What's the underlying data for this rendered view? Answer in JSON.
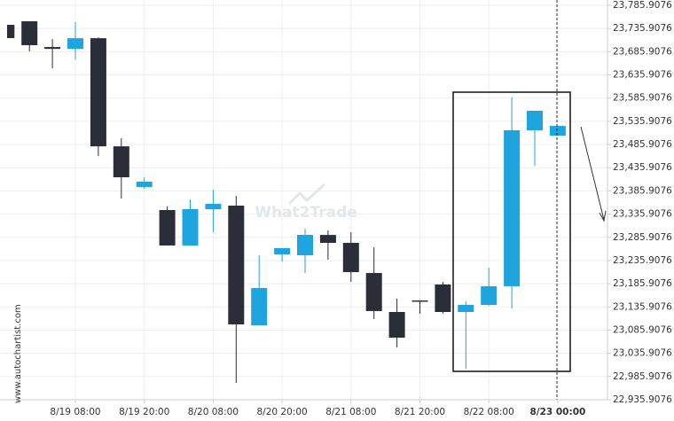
{
  "chart_data": {
    "type": "candlestick",
    "watermark": "What2Trade",
    "source": "www.autochartist.com",
    "categories": [
      null,
      null,
      null,
      "8/19 08:00",
      null,
      null,
      "8/19 20:00",
      null,
      null,
      "8/20 08:00",
      null,
      null,
      "8/20 20:00",
      null,
      null,
      "8/21 08:00",
      null,
      null,
      "8/21 20:00",
      null,
      null,
      "8/22 08:00",
      null,
      null,
      "8/23 00:00"
    ],
    "open": [
      23743.9,
      23751.5,
      23696.0,
      23692.0,
      23715.0,
      23482.0,
      23394.4,
      23344.7,
      23268.0,
      23346.6,
      23354.2,
      23096.4,
      23249.2,
      23247.3,
      23291.0,
      23274.0,
      23209.0,
      23125.0,
      23149.9,
      23184.3,
      23125.0,
      23140.3,
      23180.5,
      23516.6,
      23505.0
    ],
    "high": [
      23744.0,
      23751.5,
      23713.0,
      23749.6,
      23717.0,
      23499.4,
      23415.3,
      23352.3,
      23367.6,
      23388.6,
      23375.3,
      23247.3,
      23262.6,
      23304.6,
      23300.8,
      23296.9,
      23264.5,
      23153.7,
      23150.0,
      23190.0,
      23148.0,
      23220.5,
      23587.3,
      23558.6,
      23526.0
    ],
    "low": [
      23715.0,
      23686.6,
      23650.0,
      23669.0,
      23461.0,
      23369.5,
      23390.5,
      23268.0,
      23268.0,
      23296.9,
      22972.0,
      23096.0,
      23233.9,
      23209.0,
      23237.7,
      23190.0,
      23109.8,
      23048.7,
      23121.0,
      23121.0,
      23002.8,
      23138.0,
      23132.7,
      23440.2,
      23505.0
    ],
    "close": [
      23715.2,
      23700.0,
      23692.0,
      23715.0,
      23482.0,
      23415.3,
      23405.8,
      23268.3,
      23346.6,
      23358.0,
      23098.3,
      23176.6,
      23262.6,
      23291.2,
      23274.0,
      23211.0,
      23127.0,
      23069.7,
      23148.0,
      23125.0,
      23140.3,
      23180.5,
      23516.6,
      23558.6,
      23526.0
    ],
    "up_color": "#1ea5e0",
    "down_color": "#2b2d38",
    "ylim": [
      22935.9076,
      23785.9076
    ],
    "yticks": [
      {
        "value": 22935.9076,
        "label": "22,935.9076"
      },
      {
        "value": 22985.9076,
        "label": "22,985.9076"
      },
      {
        "value": 23035.9076,
        "label": "23,035.9076"
      },
      {
        "value": 23085.9076,
        "label": "23,085.9076"
      },
      {
        "value": 23135.9076,
        "label": "23,135.9076"
      },
      {
        "value": 23185.9076,
        "label": "23,185.9076"
      },
      {
        "value": 23235.9076,
        "label": "23,235.9076"
      },
      {
        "value": 23285.9076,
        "label": "23,285.9076"
      },
      {
        "value": 23335.9076,
        "label": "23,335.9076"
      },
      {
        "value": 23385.9076,
        "label": "23,385.9076"
      },
      {
        "value": 23435.9076,
        "label": "23,435.9076"
      },
      {
        "value": 23485.9076,
        "label": "23,485.9076"
      },
      {
        "value": 23535.9076,
        "label": "23,535.9076"
      },
      {
        "value": 23585.9076,
        "label": "23,585.9076"
      },
      {
        "value": 23635.9076,
        "label": "23,635.9076"
      },
      {
        "value": 23685.9076,
        "label": "23,685.9076"
      },
      {
        "value": 23735.9076,
        "label": "23,735.9076"
      },
      {
        "value": 23785.9076,
        "label": "23,785.9076"
      }
    ],
    "grid": true
  }
}
